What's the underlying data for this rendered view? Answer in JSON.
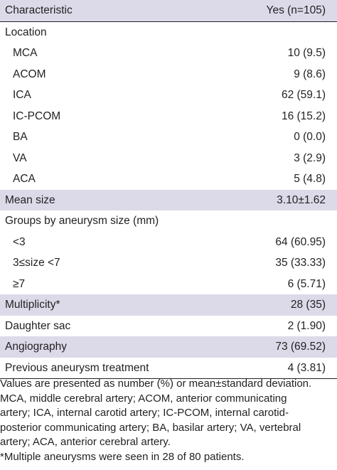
{
  "table": {
    "header": {
      "characteristic": "Characteristic",
      "value": "Yes (n=105)"
    },
    "rows": [
      {
        "label": "Location",
        "value": "",
        "indent": false,
        "shaded": false
      },
      {
        "label": "MCA",
        "value": "10 (9.5)",
        "indent": true,
        "shaded": false
      },
      {
        "label": "ACOM",
        "value": "9 (8.6)",
        "indent": true,
        "shaded": false
      },
      {
        "label": "ICA",
        "value": "62 (59.1)",
        "indent": true,
        "shaded": false
      },
      {
        "label": "IC-PCOM",
        "value": "16 (15.2)",
        "indent": true,
        "shaded": false
      },
      {
        "label": "BA",
        "value": "0 (0.0)",
        "indent": true,
        "shaded": false
      },
      {
        "label": "VA",
        "value": "3 (2.9)",
        "indent": true,
        "shaded": false
      },
      {
        "label": "ACA",
        "value": "5 (4.8)",
        "indent": true,
        "shaded": false
      },
      {
        "label": "Mean size",
        "value": "3.10±1.62",
        "indent": false,
        "shaded": true
      },
      {
        "label": "Groups by aneurysm size (mm)",
        "value": "",
        "indent": false,
        "shaded": false
      },
      {
        "label": "<3",
        "value": "64 (60.95)",
        "indent": true,
        "shaded": false
      },
      {
        "label": "3≤size <7",
        "value": "35 (33.33)",
        "indent": true,
        "shaded": false
      },
      {
        "label": "≥7",
        "value": "6 (5.71)",
        "indent": true,
        "shaded": false
      },
      {
        "label": "Multiplicity*",
        "value": "28 (35)",
        "indent": false,
        "shaded": true
      },
      {
        "label": "Daughter sac",
        "value": "2 (1.90)",
        "indent": false,
        "shaded": false
      },
      {
        "label": "Angiography",
        "value": "73 (69.52)",
        "indent": false,
        "shaded": true
      },
      {
        "label": "Previous aneurysm treatment",
        "value": "4 (3.81)",
        "indent": false,
        "shaded": false
      }
    ]
  },
  "notes": [
    "Values are presented as number (%) or mean±standard deviation.",
    "MCA, middle cerebral artery; ACOM, anterior communicating",
    "artery; ICA, internal carotid artery; IC-PCOM, internal carotid-",
    "posterior communicating artery; BA, basilar artery; VA, vertebral",
    "artery; ACA, anterior cerebral artery.",
    "*Multiple aneurysms were seen in 28 of 80 patients."
  ],
  "colors": {
    "shade": "#dcdae9",
    "text": "#231f20",
    "rule": "#231f20"
  }
}
